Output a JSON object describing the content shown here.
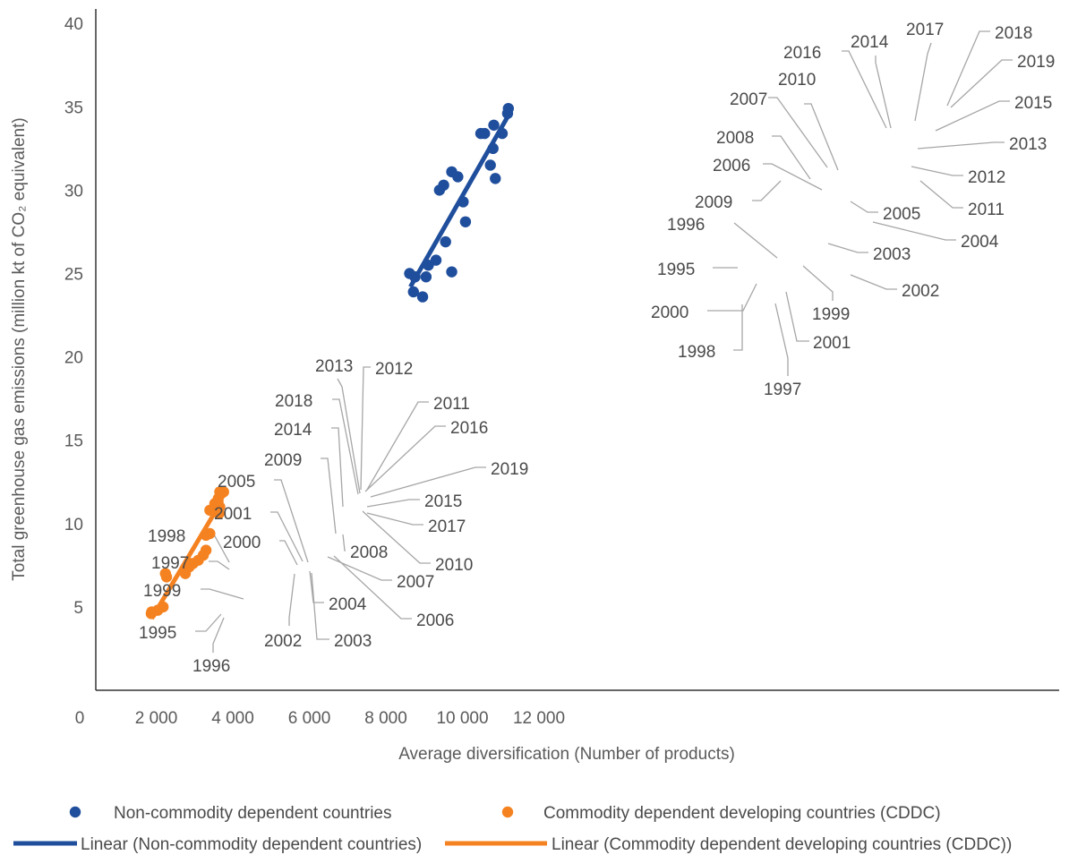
{
  "chart_data": {
    "type": "scatter",
    "xlabel": "Average diversification (Number of products)",
    "ylabel": "Total greenhouse gas emissions (million kt of CO₂ equivalent)",
    "xlim": [
      0,
      12000
    ],
    "ylim": [
      0,
      40
    ],
    "xticks": [
      0,
      2000,
      4000,
      6000,
      8000,
      10000,
      12000
    ],
    "xtick_labels": [
      "0",
      "2 000",
      "4 000",
      "6 000",
      "8 000",
      "10 000",
      "12 000"
    ],
    "yticks": [
      5,
      10,
      15,
      20,
      25,
      30,
      35,
      40
    ],
    "ytick_labels": [
      "5",
      "10",
      "15",
      "20",
      "25",
      "30",
      "35",
      "40"
    ],
    "grid": false,
    "legend_position": "bottom",
    "series": [
      {
        "name": "Non-commodity dependent countries",
        "color": "#1f4e9c",
        "points": [
          {
            "label": "1995",
            "x": 8620,
            "y": 25.0
          },
          {
            "label": "1996",
            "x": 8760,
            "y": 24.8
          },
          {
            "label": "1997",
            "x": 8960,
            "y": 23.6
          },
          {
            "label": "1998",
            "x": 8720,
            "y": 23.9
          },
          {
            "label": "1999",
            "x": 9310,
            "y": 25.8
          },
          {
            "label": "2000",
            "x": 8760,
            "y": 24.8
          },
          {
            "label": "2001",
            "x": 9050,
            "y": 24.8
          },
          {
            "label": "2002",
            "x": 9720,
            "y": 25.1
          },
          {
            "label": "2003",
            "x": 9560,
            "y": 26.9
          },
          {
            "label": "2004",
            "x": 10080,
            "y": 28.1
          },
          {
            "label": "2005",
            "x": 10020,
            "y": 29.3
          },
          {
            "label": "2006",
            "x": 9510,
            "y": 30.3
          },
          {
            "label": "2007",
            "x": 9720,
            "y": 31.1
          },
          {
            "label": "2008",
            "x": 9400,
            "y": 30.0
          },
          {
            "label": "2009",
            "x": 9110,
            "y": 25.5
          },
          {
            "label": "2010",
            "x": 9880,
            "y": 30.8
          },
          {
            "label": "2011",
            "x": 10860,
            "y": 30.7
          },
          {
            "label": "2012",
            "x": 10730,
            "y": 31.5
          },
          {
            "label": "2013",
            "x": 10800,
            "y": 32.5
          },
          {
            "label": "2014",
            "x": 10580,
            "y": 33.4
          },
          {
            "label": "2015",
            "x": 11040,
            "y": 33.4
          },
          {
            "label": "2016",
            "x": 10480,
            "y": 33.4
          },
          {
            "label": "2017",
            "x": 10820,
            "y": 33.9
          },
          {
            "label": "2018",
            "x": 11180,
            "y": 34.6
          },
          {
            "label": "2019",
            "x": 11200,
            "y": 34.9
          }
        ]
      },
      {
        "name": "Commodity dependent developing countries (CDDC)",
        "color": "#f58220",
        "points": [
          {
            "label": "1995",
            "x": 1870,
            "y": 4.6
          },
          {
            "label": "1996",
            "x": 1880,
            "y": 4.7
          },
          {
            "label": "1997",
            "x": 2270,
            "y": 6.8
          },
          {
            "label": "1998",
            "x": 2240,
            "y": 7.0
          },
          {
            "label": "1999",
            "x": 2180,
            "y": 5.0
          },
          {
            "label": "2000",
            "x": 2040,
            "y": 4.8
          },
          {
            "label": "2001",
            "x": 2760,
            "y": 7.0
          },
          {
            "label": "2002",
            "x": 2860,
            "y": 7.4
          },
          {
            "label": "2003",
            "x": 2960,
            "y": 7.6
          },
          {
            "label": "2004",
            "x": 3100,
            "y": 7.8
          },
          {
            "label": "2005",
            "x": 2920,
            "y": 7.6
          },
          {
            "label": "2006",
            "x": 3300,
            "y": 8.4
          },
          {
            "label": "2007",
            "x": 3230,
            "y": 8.1
          },
          {
            "label": "2008",
            "x": 3400,
            "y": 9.4
          },
          {
            "label": "2009",
            "x": 3300,
            "y": 9.3
          },
          {
            "label": "2010",
            "x": 3640,
            "y": 10.6
          },
          {
            "label": "2011",
            "x": 3720,
            "y": 11.9
          },
          {
            "label": "2012",
            "x": 3660,
            "y": 11.9
          },
          {
            "label": "2013",
            "x": 3620,
            "y": 11.5
          },
          {
            "label": "2014",
            "x": 3400,
            "y": 10.8
          },
          {
            "label": "2015",
            "x": 3660,
            "y": 11.0
          },
          {
            "label": "2016",
            "x": 3700,
            "y": 11.8
          },
          {
            "label": "2017",
            "x": 3600,
            "y": 10.8
          },
          {
            "label": "2018",
            "x": 3530,
            "y": 11.2
          },
          {
            "label": "2019",
            "x": 3760,
            "y": 11.9
          }
        ]
      }
    ],
    "trendlines": [
      {
        "name": "Linear (Non-commodity dependent countries)",
        "color": "#1f4e9c",
        "x": [
          8640,
          11180
        ],
        "y": [
          24.2,
          34.4
        ]
      },
      {
        "name": "Linear (Commodity dependent developing countries (CDDC))",
        "color": "#f58220",
        "x": [
          1880,
          3720
        ],
        "y": [
          4.3,
          11.4
        ]
      }
    ],
    "legend": [
      {
        "label": "Non-commodity dependent countries",
        "kind": "marker",
        "color": "#1f4e9c"
      },
      {
        "label": "Commodity dependent developing countries (CDDC)",
        "kind": "marker",
        "color": "#f58220"
      },
      {
        "label": "Linear (Non-commodity dependent countries)",
        "kind": "line",
        "color": "#1f4e9c"
      },
      {
        "label": "Linear (Commodity dependent developing countries (CDDC))",
        "kind": "line",
        "color": "#f58220"
      }
    ]
  }
}
